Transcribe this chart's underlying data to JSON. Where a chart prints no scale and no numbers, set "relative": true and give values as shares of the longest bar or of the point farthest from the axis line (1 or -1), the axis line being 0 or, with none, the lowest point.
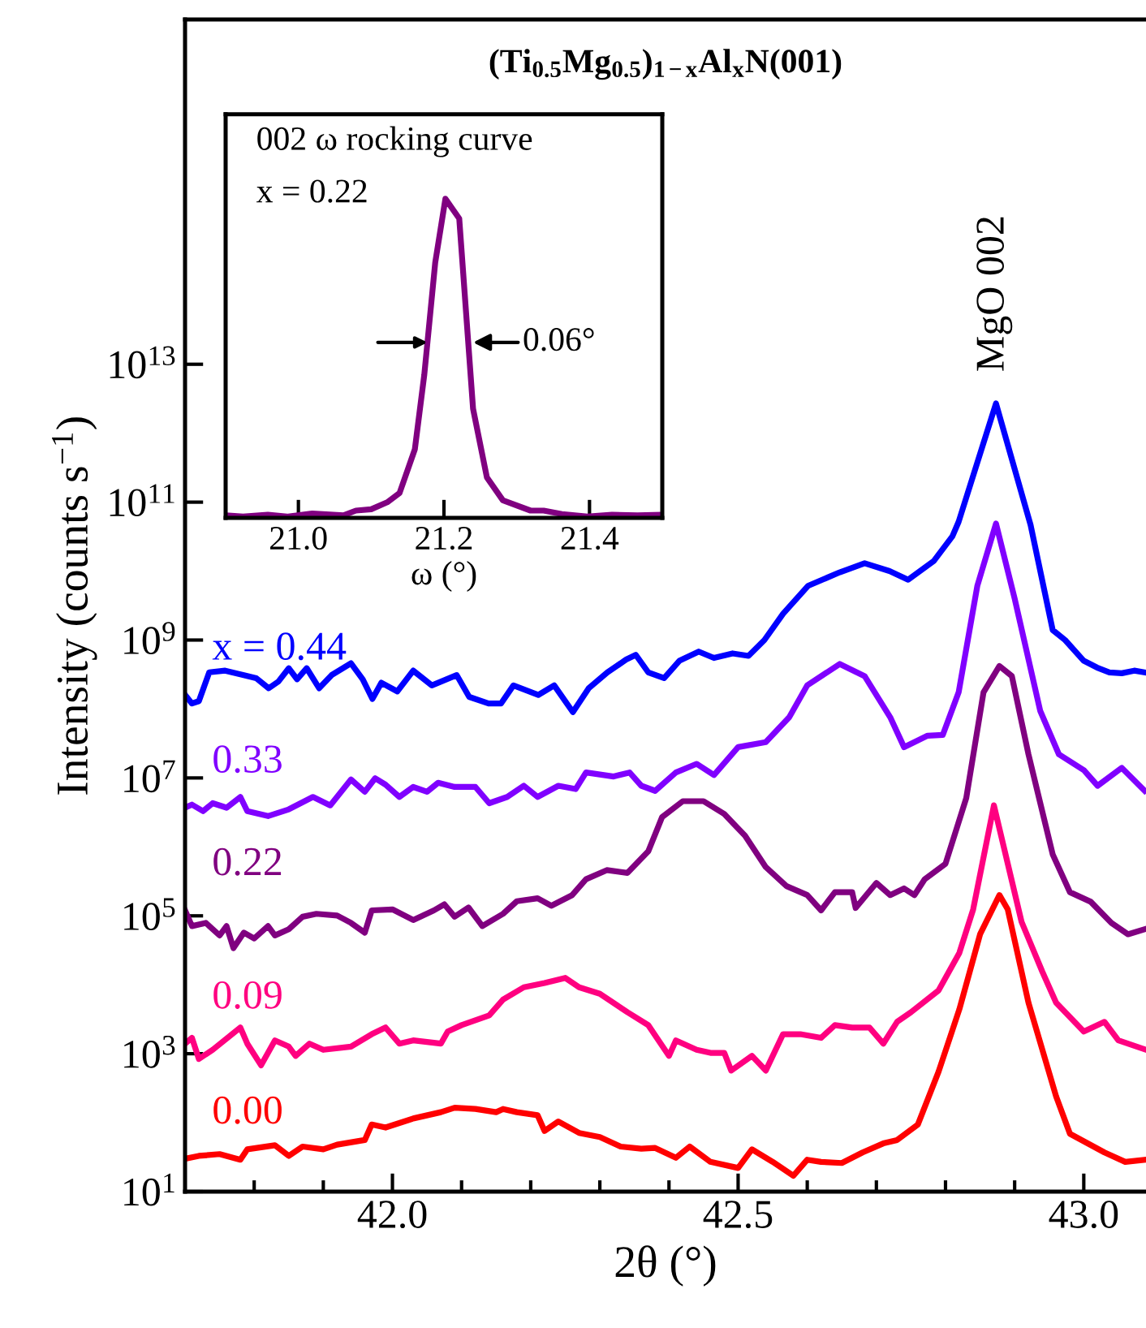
{
  "chart_data": [
    {
      "type": "line",
      "title": "(Ti$_{0.5}$Mg$_{0.5}$)$_{1−x}$Al$_{x}$N(001)",
      "xlabel": "2θ (°)",
      "ylabel": "Intensity (counts s$^{−1}$)",
      "log": "y",
      "xlim": [
        41.7,
        43.09
      ],
      "ylim": [
        10,
        1e+18
      ],
      "xticks": [
        {
          "value": 41.8,
          "label": null
        },
        {
          "value": 41.9,
          "label": null
        },
        {
          "value": 42.0,
          "label": "42.0"
        },
        {
          "value": 42.1,
          "label": null
        },
        {
          "value": 42.2,
          "label": null
        },
        {
          "value": 42.3,
          "label": null
        },
        {
          "value": 42.4,
          "label": null
        },
        {
          "value": 42.5,
          "label": "42.5"
        },
        {
          "value": 42.6,
          "label": null
        },
        {
          "value": 42.7,
          "label": null
        },
        {
          "value": 42.8,
          "label": null
        },
        {
          "value": 42.9,
          "label": null
        },
        {
          "value": 43.0,
          "label": "43.0"
        }
      ],
      "yticks": [
        {
          "value": 10,
          "label": "10$^{1}$"
        },
        {
          "value": 1000,
          "label": "10$^{3}$"
        },
        {
          "value": 100000,
          "label": "10$^{5}$"
        },
        {
          "value": 10000000,
          "label": "10$^{7}$"
        },
        {
          "value": 1000000000,
          "label": "10$^{9}$"
        },
        {
          "value": 100000000000,
          "label": "10$^{11}$"
        },
        {
          "value": 10000000000000,
          "label": "10$^{13}$"
        }
      ],
      "annotations": [
        {
          "text": "MgO 002",
          "x": 42.87,
          "y": 2700000000000.0
        }
      ],
      "series": [
        {
          "name": "x = 0.44",
          "color": "#0000ff",
          "x": [
            41.7,
            41.71,
            41.72,
            41.735,
            41.758,
            41.785,
            41.803,
            41.821,
            41.835,
            41.85,
            41.862,
            41.876,
            41.894,
            41.912,
            41.94,
            41.957,
            41.971,
            41.984,
            42.007,
            42.03,
            42.057,
            42.093,
            42.111,
            42.139,
            42.157,
            42.175,
            42.211,
            42.234,
            42.261,
            42.284,
            42.311,
            42.338,
            42.352,
            42.37,
            42.393,
            42.415,
            42.443,
            42.465,
            42.492,
            42.515,
            42.538,
            42.565,
            42.601,
            42.647,
            42.683,
            42.719,
            42.746,
            42.783,
            42.81,
            42.819,
            42.873,
            42.923,
            42.955,
            42.973,
            43.0,
            43.019,
            43.037,
            43.055,
            43.073,
            43.088
          ],
          "values": [
            160000000.0,
            120000000.0,
            130000000.0,
            340000000.0,
            360000000.0,
            310000000.0,
            280000000.0,
            200000000.0,
            250000000.0,
            390000000.0,
            270000000.0,
            390000000.0,
            200000000.0,
            310000000.0,
            460000000.0,
            270000000.0,
            140000000.0,
            240000000.0,
            180000000.0,
            360000000.0,
            220000000.0,
            310000000.0,
            150000000.0,
            120000000.0,
            120000000.0,
            220000000.0,
            160000000.0,
            220000000.0,
            90000000.0,
            200000000.0,
            340000000.0,
            520000000.0,
            610000000.0,
            340000000.0,
            280000000.0,
            500000000.0,
            680000000.0,
            550000000.0,
            640000000.0,
            590000000.0,
            1000000000.0,
            2400000000.0,
            6100000000.0,
            9600000000.0,
            13000000000.0,
            10000000000.0,
            7500000000.0,
            14000000000.0,
            32000000000.0,
            52000000000.0,
            2700000000000.0,
            47000000000.0,
            1400000000.0,
            1000000000.0,
            500000000.0,
            400000000.0,
            340000000.0,
            330000000.0,
            360000000.0,
            340000000.0
          ]
        },
        {
          "name": "0.33",
          "color": "#8000ff",
          "x": [
            41.7,
            41.71,
            41.726,
            41.74,
            41.76,
            41.78,
            41.79,
            41.82,
            41.85,
            41.885,
            41.91,
            41.94,
            41.96,
            41.975,
            41.99,
            42.01,
            42.03,
            42.05,
            42.066,
            42.09,
            42.12,
            42.14,
            42.166,
            42.19,
            42.21,
            42.24,
            42.265,
            42.28,
            42.32,
            42.343,
            42.36,
            42.38,
            42.41,
            42.44,
            42.465,
            42.5,
            42.54,
            42.574,
            42.6,
            42.647,
            42.683,
            42.72,
            42.74,
            42.774,
            42.796,
            42.819,
            42.846,
            42.873,
            42.9,
            42.937,
            42.964,
            43.0,
            43.02,
            43.055,
            43.088
          ],
          "values": [
            3700000.0,
            4100000.0,
            3300000.0,
            4300000.0,
            3700000.0,
            5300000.0,
            3300000.0,
            2800000.0,
            3500000.0,
            5300000.0,
            4000000.0,
            9500000.0,
            6300000.0,
            9900000.0,
            8000000.0,
            5300000.0,
            7400000.0,
            6300000.0,
            8500000.0,
            7400000.0,
            7400000.0,
            4300000.0,
            5300000.0,
            7700000.0,
            5300000.0,
            7700000.0,
            6900000.0,
            12000000.0,
            10500000.0,
            12000000.0,
            7700000.0,
            6500000.0,
            12000000.0,
            16000000.0,
            11000000.0,
            28000000.0,
            33000000.0,
            76000000.0,
            220000000.0,
            450000000.0,
            300000000.0,
            76000000.0,
            28000000.0,
            41000000.0,
            42000000.0,
            175000000.0,
            6100000000.0,
            49000000000.0,
            4000000000.0,
            94000000.0,
            22000000.0,
            13000000.0,
            7700000.0,
            14000000.0,
            6500000.0
          ]
        },
        {
          "name": "0.22",
          "color": "#800080",
          "x": [
            41.7,
            41.71,
            41.73,
            41.75,
            41.76,
            41.77,
            41.785,
            41.8,
            41.82,
            41.83,
            41.85,
            41.87,
            41.89,
            41.92,
            41.94,
            41.96,
            41.97,
            42.0,
            42.03,
            42.06,
            42.075,
            42.09,
            42.11,
            42.13,
            42.16,
            42.18,
            42.21,
            42.23,
            42.26,
            42.28,
            42.31,
            42.34,
            42.37,
            42.39,
            42.42,
            42.45,
            42.48,
            42.51,
            42.54,
            42.57,
            42.6,
            42.62,
            42.64,
            42.665,
            42.67,
            42.7,
            42.72,
            42.74,
            42.755,
            42.77,
            42.8,
            42.83,
            42.855,
            42.878,
            42.896,
            42.92,
            42.955,
            42.98,
            43.01,
            43.04,
            43.064,
            43.088
          ],
          "values": [
            120000.0,
            71000.0,
            79000.0,
            52000.0,
            71000.0,
            34000.0,
            57000.0,
            47000.0,
            71000.0,
            52000.0,
            64000.0,
            97000.0,
            107000.0,
            101000.0,
            79000.0,
            57000.0,
            120000.0,
            124000.0,
            87000.0,
            120000.0,
            147000.0,
            97000.0,
            132000.0,
            71000.0,
            107000.0,
            163000.0,
            180000.0,
            140000.0,
            200000.0,
            340000.0,
            460000.0,
            420000.0,
            860000.0,
            2700000.0,
            4600000.0,
            4600000.0,
            3000000.0,
            1450000.0,
            510000.0,
            270000.0,
            200000.0,
            120000.0,
            220000.0,
            220000.0,
            130000.0,
            300000.0,
            200000.0,
            250000.0,
            200000.0,
            340000.0,
            570000.0,
            5100000.0,
            175000000.0,
            420000000.0,
            300000000.0,
            22000000.0,
            780000.0,
            220000.0,
            160000.0,
            79000.0,
            54000.0,
            64000.0
          ]
        },
        {
          "name": "0.09",
          "color": "#ff0080",
          "x": [
            41.7,
            41.71,
            41.72,
            41.74,
            41.78,
            41.79,
            41.81,
            41.83,
            41.85,
            41.86,
            41.88,
            41.9,
            41.94,
            41.97,
            41.99,
            42.01,
            42.03,
            42.07,
            42.08,
            42.1,
            42.14,
            42.16,
            42.19,
            42.22,
            42.25,
            42.27,
            42.3,
            42.34,
            42.37,
            42.4,
            42.41,
            42.44,
            42.46,
            42.48,
            42.49,
            42.52,
            42.54,
            42.565,
            42.59,
            42.62,
            42.64,
            42.665,
            42.69,
            42.71,
            42.73,
            42.75,
            42.79,
            42.82,
            42.84,
            42.87,
            42.91,
            42.94,
            42.96,
            43.0,
            43.03,
            43.05,
            43.09
          ],
          "values": [
            1400,
            1700,
            840,
            1140,
            2400,
            1400,
            680,
            1560,
            1270,
            930,
            1400,
            1140,
            1270,
            1920,
            2400,
            1400,
            1560,
            1400,
            2100,
            2600,
            3600,
            6100,
            9200,
            10600,
            12600,
            9200,
            7400,
            4000,
            2600,
            930,
            1560,
            1140,
            1030,
            1030,
            570,
            930,
            570,
            1920,
            1920,
            1700,
            2600,
            2400,
            2400,
            1400,
            2900,
            4000,
            8300,
            29000,
            124000,
            4000000,
            82000,
            15500,
            5500,
            2100,
            2900,
            1560,
            1140
          ]
        },
        {
          "name": "0.00",
          "color": "#ff0000",
          "x": [
            41.7,
            41.72,
            41.75,
            41.78,
            41.79,
            41.83,
            41.85,
            41.87,
            41.9,
            41.92,
            41.96,
            41.97,
            41.99,
            42.03,
            42.07,
            42.09,
            42.12,
            42.15,
            42.16,
            42.18,
            42.21,
            42.22,
            42.24,
            42.27,
            42.3,
            42.33,
            42.36,
            42.38,
            42.41,
            42.43,
            42.46,
            42.5,
            42.52,
            42.55,
            42.58,
            42.6,
            42.62,
            42.65,
            42.68,
            42.71,
            42.73,
            42.76,
            42.79,
            42.82,
            42.85,
            42.878,
            42.89,
            42.92,
            42.96,
            42.98,
            43.03,
            43.06,
            43.088
          ],
          "values": [
            30,
            33,
            35,
            29,
            41,
            47,
            33,
            45,
            41,
            48,
            56,
            94,
            85,
            115,
            142,
            165,
            158,
            142,
            158,
            142,
            128,
            76,
            104,
            71,
            62,
            45,
            42,
            43,
            31,
            45,
            27,
            22,
            41,
            27,
            17,
            29,
            27,
            26,
            37,
            50,
            56,
            94,
            550,
            4400,
            54000,
            200000,
            124000,
            5500,
            240,
            69,
            37,
            27,
            29
          ]
        }
      ]
    },
    {
      "type": "line",
      "relative": true,
      "xlabel": "ω (°)",
      "xlim": [
        20.9,
        21.5
      ],
      "xticks": [
        {
          "value": 21.0,
          "label": "21.0"
        },
        {
          "value": 21.2,
          "label": "21.2"
        },
        {
          "value": 21.4,
          "label": "21.4"
        }
      ],
      "tick_labels": "x",
      "annotations": [
        "002 ω rocking curve",
        "x = 0.22",
        {
          "text": "0.06°",
          "x": 21.24,
          "y": 0.55
        }
      ],
      "series": [
        {
          "color": "#800080",
          "x": [
            20.9,
            20.924,
            20.958,
            20.984,
            21.019,
            21.062,
            21.079,
            21.1,
            21.122,
            21.139,
            21.16,
            21.173,
            21.188,
            21.202,
            21.221,
            21.24,
            21.259,
            21.281,
            21.319,
            21.337,
            21.362,
            21.397,
            21.431,
            21.466,
            21.5
          ],
          "values": [
            0.008,
            0.004,
            0.01,
            0.004,
            0.014,
            0.008,
            0.023,
            0.027,
            0.049,
            0.078,
            0.215,
            0.449,
            0.8,
            1.0,
            0.938,
            0.342,
            0.127,
            0.055,
            0.023,
            0.023,
            0.012,
            0.004,
            0.01,
            0.008,
            0.01
          ]
        }
      ]
    }
  ]
}
